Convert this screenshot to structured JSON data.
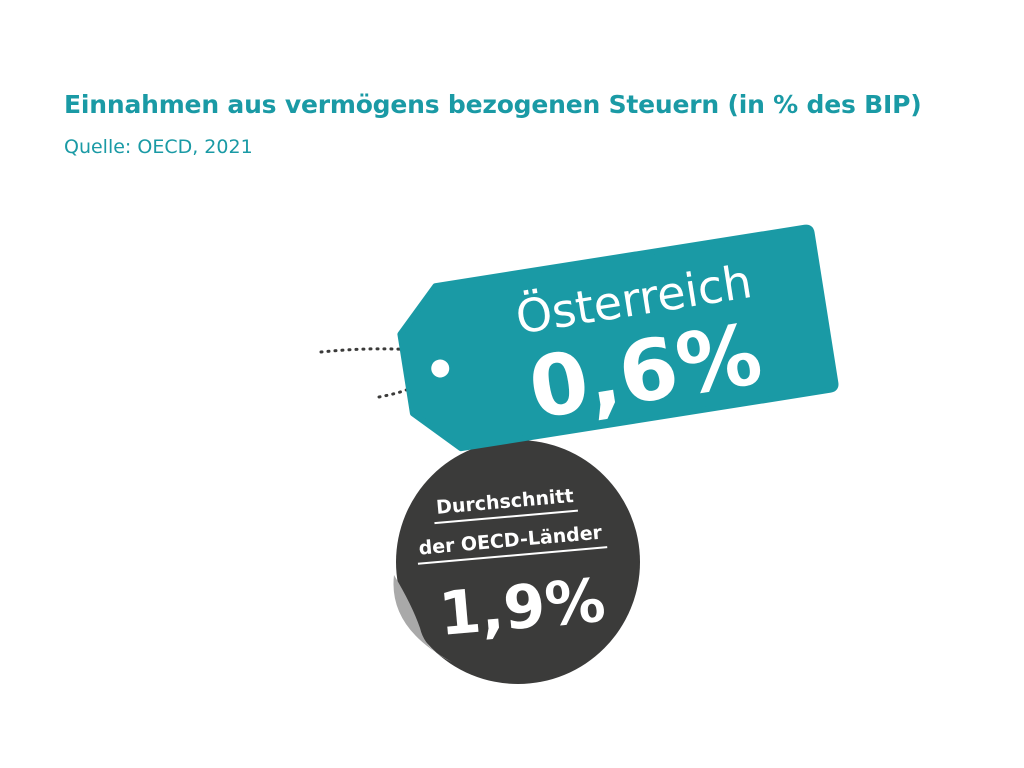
{
  "title": "Einnahmen aus vermögens bezogenen Steuern (in % des BIP)",
  "source": "Quelle: OECD, 2021",
  "colors": {
    "tag": "#1a9aa5",
    "sticker": "#3b3b3a",
    "sticker_curl": "#a9a9a9",
    "text_on_dark": "#ffffff",
    "string": "#3b3b3a"
  },
  "chart_data": {
    "type": "bar",
    "title": "Einnahmen aus vermögens bezogenen Steuern (in % des BIP)",
    "subtitle": "Quelle: OECD, 2021",
    "categories": [
      "Österreich",
      "Durchschnitt der OECD-Länder"
    ],
    "values": [
      0.6,
      1.9
    ],
    "unit": "%",
    "items": [
      {
        "name": "Österreich",
        "value_label": "0,6%",
        "value": 0.6
      },
      {
        "name_line1": "Durchschnitt",
        "name_line2": "der OECD-Länder",
        "value_label": "1,9%",
        "value": 1.9
      }
    ]
  }
}
